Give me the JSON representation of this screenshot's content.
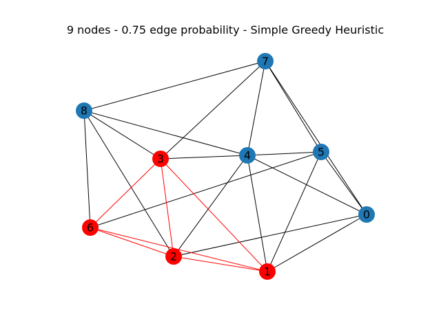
{
  "title": "9 nodes - 0.75 edge probability - Simple Greedy Heuristic",
  "colors": {
    "default_node": "#1f77b4",
    "highlight_node": "#ff0000",
    "default_edge": "#000000",
    "highlight_edge": "#ff0000"
  },
  "nodes": [
    {
      "id": "0",
      "label": "0",
      "highlight": false
    },
    {
      "id": "1",
      "label": "1",
      "highlight": true
    },
    {
      "id": "2",
      "label": "2",
      "highlight": true
    },
    {
      "id": "3",
      "label": "3",
      "highlight": true
    },
    {
      "id": "4",
      "label": "4",
      "highlight": false
    },
    {
      "id": "5",
      "label": "5",
      "highlight": false
    },
    {
      "id": "6",
      "label": "6",
      "highlight": true
    },
    {
      "id": "7",
      "label": "7",
      "highlight": false
    },
    {
      "id": "8",
      "label": "8",
      "highlight": false
    }
  ],
  "edges": [
    {
      "source": "7",
      "target": "8",
      "highlight": false
    },
    {
      "source": "7",
      "target": "3",
      "highlight": false
    },
    {
      "source": "7",
      "target": "4",
      "highlight": false
    },
    {
      "source": "7",
      "target": "5",
      "highlight": false
    },
    {
      "source": "7",
      "target": "0",
      "highlight": false
    },
    {
      "source": "8",
      "target": "3",
      "highlight": false
    },
    {
      "source": "8",
      "target": "4",
      "highlight": false
    },
    {
      "source": "8",
      "target": "6",
      "highlight": false
    },
    {
      "source": "8",
      "target": "2",
      "highlight": false
    },
    {
      "source": "3",
      "target": "4",
      "highlight": false
    },
    {
      "source": "4",
      "target": "5",
      "highlight": false
    },
    {
      "source": "4",
      "target": "0",
      "highlight": false
    },
    {
      "source": "4",
      "target": "2",
      "highlight": false
    },
    {
      "source": "4",
      "target": "1",
      "highlight": false
    },
    {
      "source": "5",
      "target": "0",
      "highlight": false
    },
    {
      "source": "5",
      "target": "6",
      "highlight": false
    },
    {
      "source": "5",
      "target": "1",
      "highlight": false
    },
    {
      "source": "0",
      "target": "2",
      "highlight": false
    },
    {
      "source": "0",
      "target": "1",
      "highlight": false
    },
    {
      "source": "3",
      "target": "6",
      "highlight": true
    },
    {
      "source": "3",
      "target": "2",
      "highlight": true
    },
    {
      "source": "3",
      "target": "1",
      "highlight": true
    },
    {
      "source": "6",
      "target": "2",
      "highlight": true
    },
    {
      "source": "6",
      "target": "1",
      "highlight": true
    },
    {
      "source": "2",
      "target": "1",
      "highlight": true
    }
  ]
}
